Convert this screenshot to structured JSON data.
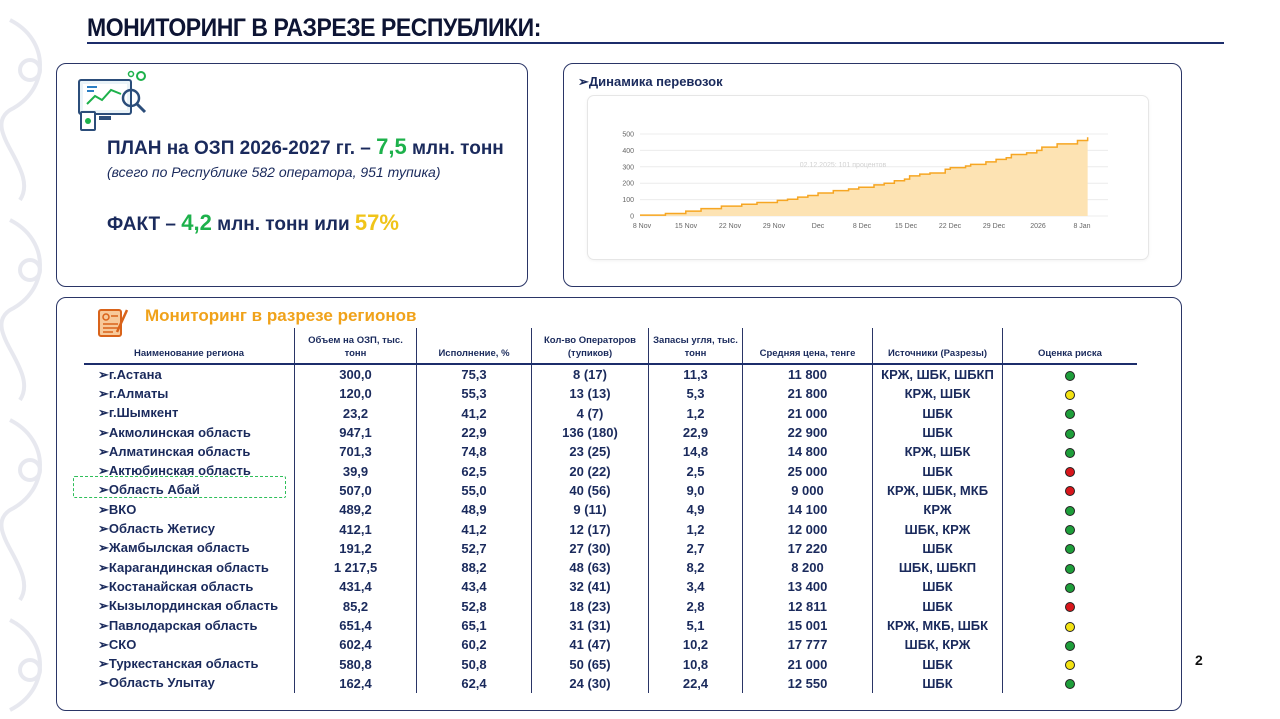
{
  "page": {
    "title": "МОНИТОРИНГ В РАЗРЕЗЕ РЕСПУБЛИКИ:",
    "page_number": "2"
  },
  "plan": {
    "plan_prefix": "ПЛАН на ОЗП 2026-2027 гг. – ",
    "plan_value": "7,5",
    "plan_unit": " млн. тонн",
    "note": "(всего по Республике 582 оператора, 951 тупика)",
    "fact_prefix": "ФАКТ – ",
    "fact_value": "4,2",
    "fact_mid": " млн. тонн или ",
    "fact_percent": "57%"
  },
  "chart": {
    "title": "➢Динамика перевозок",
    "hover_label": "02.12.2025: 101 процентов"
  },
  "chart_data": {
    "type": "area",
    "x_tick_labels": [
      "8 Nov",
      "15 Nov",
      "22 Nov",
      "29 Nov",
      "Dec",
      "8 Dec",
      "15 Dec",
      "22 Dec",
      "29 Dec",
      "2026",
      "8 Jan"
    ],
    "y_tick_labels": [
      "0",
      "100",
      "200",
      "300",
      "400",
      "500"
    ],
    "ylim": [
      0,
      500
    ],
    "x_day_index_from_8_nov": [
      0,
      5,
      9,
      12,
      16,
      20,
      23,
      27,
      29,
      31,
      33,
      35,
      38,
      41,
      43,
      46,
      48,
      50,
      52,
      53,
      55,
      57,
      60,
      61,
      64,
      65,
      68,
      70,
      72,
      73,
      76,
      78,
      79,
      82,
      86,
      88
    ],
    "values": [
      5,
      15,
      30,
      45,
      60,
      72,
      82,
      95,
      102,
      115,
      125,
      140,
      155,
      165,
      175,
      190,
      200,
      215,
      225,
      245,
      255,
      262,
      285,
      295,
      305,
      315,
      330,
      345,
      355,
      375,
      385,
      400,
      420,
      440,
      460,
      480
    ],
    "color": "#f6a623",
    "fill": "#fde3b3",
    "grid": true
  },
  "table": {
    "section_title": "Мониторинг в разрезе регионов",
    "headers": [
      "Наименование региона",
      "Объем на ОЗП, тыс. тонн",
      "Исполнение, %",
      "Кол-во Операторов (тупиков)",
      "Запасы угля, тыс. тонн",
      "Средняя цена, тенге",
      "Источники (Разрезы)",
      "Оценка риска"
    ],
    "risk_colors": {
      "green": "#1e9e3a",
      "yellow": "#f3e212",
      "red": "#d8161b"
    },
    "rows": [
      {
        "name": "➢г.Астана",
        "volume": "300,0",
        "exec": "75,3",
        "operators": "8 (17)",
        "stock": "11,3",
        "price": "11 800",
        "source": "КРЖ, ШБК, ШБКП",
        "risk": "green"
      },
      {
        "name": "➢г.Алматы",
        "volume": "120,0",
        "exec": "55,3",
        "operators": "13 (13)",
        "stock": "5,3",
        "price": "21 800",
        "source": "КРЖ, ШБК",
        "risk": "yellow"
      },
      {
        "name": "➢г.Шымкент",
        "volume": "23,2",
        "exec": "41,2",
        "operators": "4 (7)",
        "stock": "1,2",
        "price": "21 000",
        "source": "ШБК",
        "risk": "green"
      },
      {
        "name": "➢Акмолинская область",
        "volume": "947,1",
        "exec": "22,9",
        "operators": "136 (180)",
        "stock": "22,9",
        "price": "22 900",
        "source": "ШБК",
        "risk": "green"
      },
      {
        "name": "➢Алматинская область",
        "volume": "701,3",
        "exec": "74,8",
        "operators": "23 (25)",
        "stock": "14,8",
        "price": "14 800",
        "source": "КРЖ, ШБК",
        "risk": "green"
      },
      {
        "name": "➢Актюбинская область",
        "volume": "39,9",
        "exec": "62,5",
        "operators": "20 (22)",
        "stock": "2,5",
        "price": "25 000",
        "source": "ШБК",
        "risk": "red"
      },
      {
        "name": "➢Область Абай",
        "volume": "507,0",
        "exec": "55,0",
        "operators": "40 (56)",
        "stock": "9,0",
        "price": "9 000",
        "source": "КРЖ, ШБК, МКБ",
        "risk": "red"
      },
      {
        "name": "➢ВКО",
        "volume": "489,2",
        "exec": "48,9",
        "operators": "9 (11)",
        "stock": "4,9",
        "price": "14 100",
        "source": "КРЖ",
        "risk": "green"
      },
      {
        "name": "➢Область Жетису",
        "volume": "412,1",
        "exec": "41,2",
        "operators": "12 (17)",
        "stock": "1,2",
        "price": "12 000",
        "source": "ШБК, КРЖ",
        "risk": "green"
      },
      {
        "name": "➢Жамбылская область",
        "volume": "191,2",
        "exec": "52,7",
        "operators": "27 (30)",
        "stock": "2,7",
        "price": "17 220",
        "source": "ШБК",
        "risk": "green"
      },
      {
        "name": "➢Карагандинская область",
        "volume": "1 217,5",
        "exec": "88,2",
        "operators": "48 (63)",
        "stock": "8,2",
        "price": "8 200",
        "source": "ШБК, ШБКП",
        "risk": "green"
      },
      {
        "name": "➢Костанайская область",
        "volume": "431,4",
        "exec": "43,4",
        "operators": "32 (41)",
        "stock": "3,4",
        "price": "13 400",
        "source": "ШБК",
        "risk": "green"
      },
      {
        "name": "➢Кызылординская область",
        "volume": "85,2",
        "exec": "52,8",
        "operators": "18 (23)",
        "stock": "2,8",
        "price": "12 811",
        "source": "ШБК",
        "risk": "red"
      },
      {
        "name": "➢Павлодарская область",
        "volume": "651,4",
        "exec": "65,1",
        "operators": "31 (31)",
        "stock": "5,1",
        "price": "15 001",
        "source": "КРЖ, МКБ, ШБК",
        "risk": "yellow"
      },
      {
        "name": "➢СКО",
        "volume": "602,4",
        "exec": "60,2",
        "operators": "41 (47)",
        "stock": "10,2",
        "price": "17 777",
        "source": "ШБК, КРЖ",
        "risk": "green"
      },
      {
        "name": "➢Туркестанская область",
        "volume": "580,8",
        "exec": "50,8",
        "operators": "50 (65)",
        "stock": "10,8",
        "price": "21 000",
        "source": "ШБК",
        "risk": "yellow"
      },
      {
        "name": "➢Область Улытау",
        "volume": "162,4",
        "exec": "62,4",
        "operators": "24 (30)",
        "stock": "22,4",
        "price": "12 550",
        "source": "ШБК",
        "risk": "green"
      }
    ]
  }
}
